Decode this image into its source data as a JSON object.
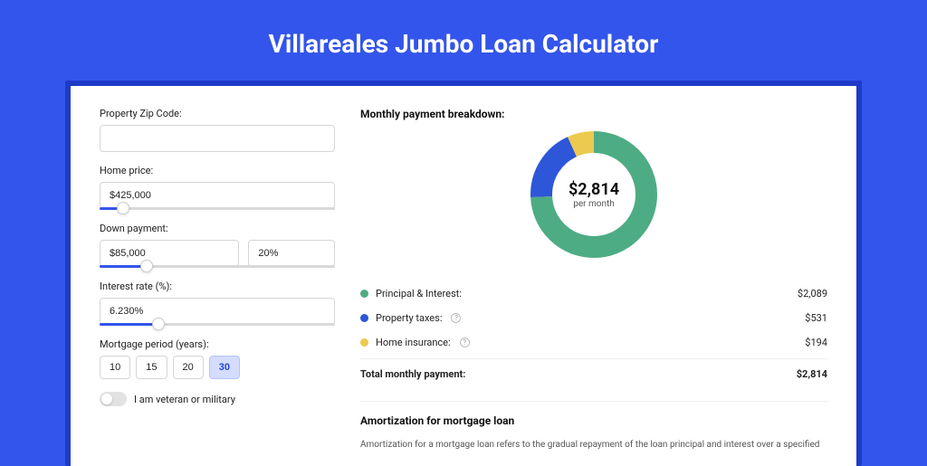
{
  "page": {
    "title": "Villareales Jumbo Loan Calculator",
    "background_color": "#3455eb",
    "inner_frame_color": "#1e3ac9",
    "card_bg": "#ffffff"
  },
  "form": {
    "zip": {
      "label": "Property Zip Code:",
      "value": ""
    },
    "home_price": {
      "label": "Home price:",
      "value": "$425,000",
      "slider_percent": 10
    },
    "down_payment": {
      "label": "Down payment:",
      "amount": "$85,000",
      "percent": "20%",
      "slider_percent": 20
    },
    "interest_rate": {
      "label": "Interest rate (%):",
      "value": "6.230%",
      "slider_percent": 25
    },
    "mortgage_period": {
      "label": "Mortgage period (years):",
      "options": [
        "10",
        "15",
        "20",
        "30"
      ],
      "selected": "30"
    },
    "veteran": {
      "label": "I am veteran or military",
      "checked": false
    }
  },
  "breakdown": {
    "title": "Monthly payment breakdown:",
    "center_amount": "$2,814",
    "center_sub": "per month",
    "donut": {
      "type": "donut",
      "size": 140,
      "thickness": 24,
      "background": "#ffffff",
      "slices": [
        {
          "label": "Principal & Interest",
          "value": 2089,
          "color": "#4eac84"
        },
        {
          "label": "Property taxes",
          "value": 531,
          "color": "#2e56d8"
        },
        {
          "label": "Home insurance",
          "value": 194,
          "color": "#ecca4f"
        }
      ]
    },
    "rows": [
      {
        "label": "Principal & Interest:",
        "amount": "$2,089",
        "color": "#4eac84",
        "info": false
      },
      {
        "label": "Property taxes:",
        "amount": "$531",
        "color": "#2e56d8",
        "info": true
      },
      {
        "label": "Home insurance:",
        "amount": "$194",
        "color": "#ecca4f",
        "info": true
      }
    ],
    "total": {
      "label": "Total monthly payment:",
      "amount": "$2,814"
    }
  },
  "amortization": {
    "title": "Amortization for mortgage loan",
    "text": "Amortization for a mortgage loan refers to the gradual repayment of the loan principal and interest over a specified"
  }
}
